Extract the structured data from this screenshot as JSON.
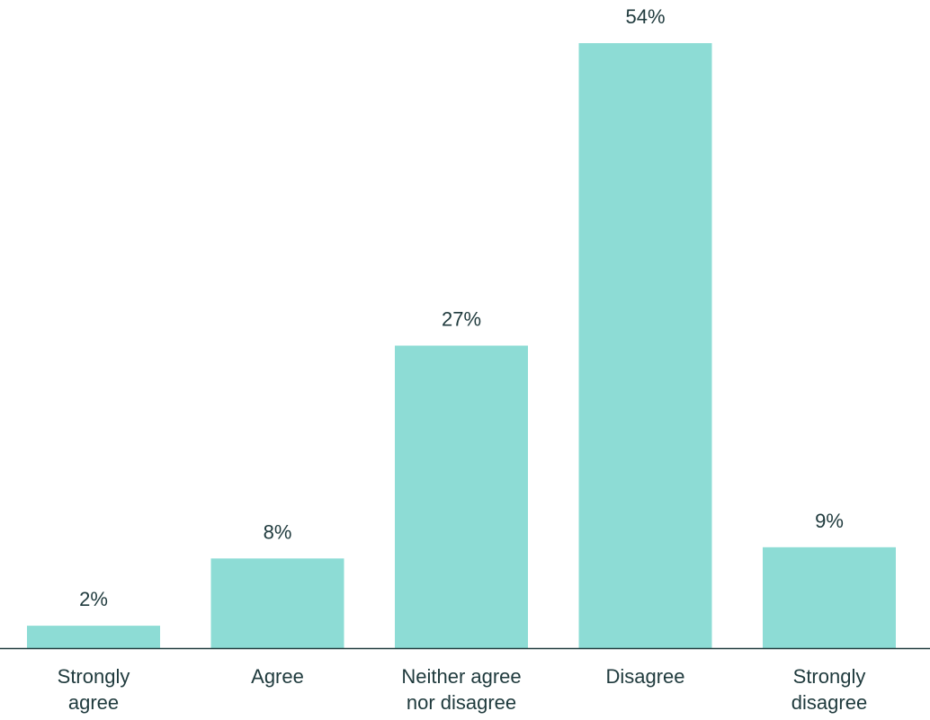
{
  "chart_data": {
    "type": "bar",
    "categories": [
      [
        "Strongly",
        "agree"
      ],
      [
        "Agree"
      ],
      [
        "Neither agree",
        "nor disagree"
      ],
      [
        "Disagree"
      ],
      [
        "Strongly",
        "disagree"
      ]
    ],
    "values": [
      2,
      8,
      27,
      54,
      9
    ],
    "value_labels": [
      "2%",
      "8%",
      "27%",
      "54%",
      "9%"
    ],
    "unit": "%",
    "title": "",
    "xlabel": "",
    "ylabel": "",
    "ylim": [
      0,
      54
    ],
    "grid": false,
    "legend": "none"
  },
  "colors": {
    "bar": "#8ddcd5",
    "axis": "#1f3a3d",
    "text": "#1f3a3d",
    "background": "#ffffff"
  }
}
